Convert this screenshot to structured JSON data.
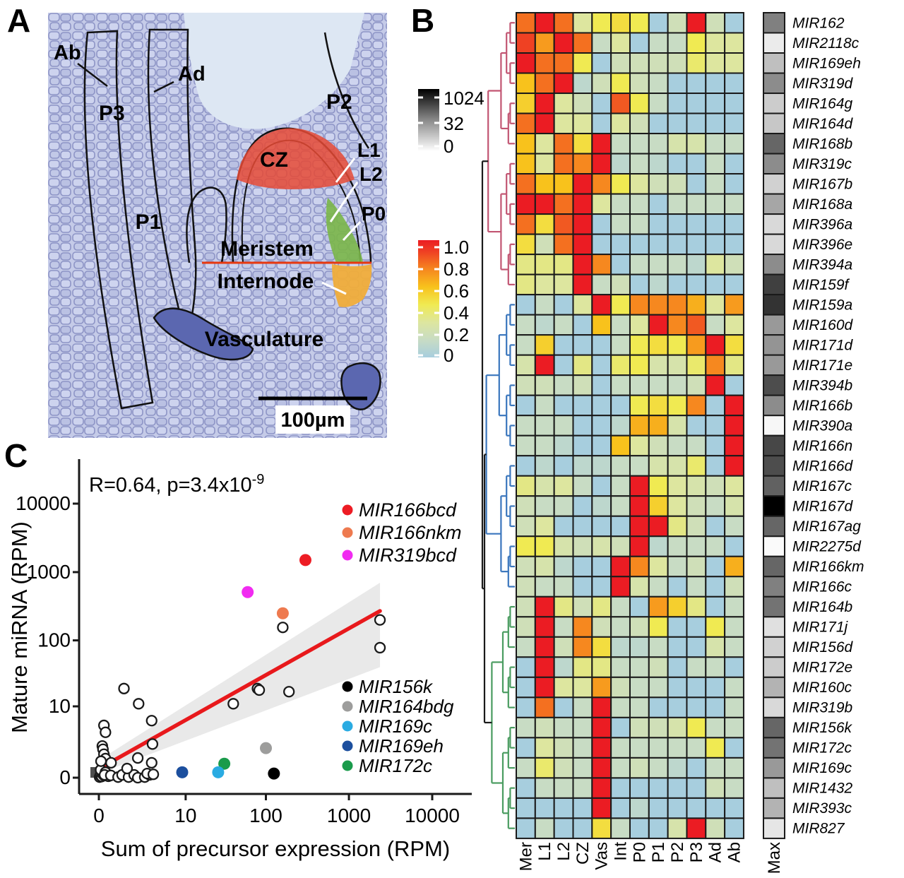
{
  "figure": {
    "panel_a_letter": "A",
    "panel_b_letter": "B",
    "panel_c_letter": "C"
  },
  "panel_a": {
    "labels": {
      "ab": "Ab",
      "ad": "Ad",
      "p3": "P3",
      "p2": "P2",
      "cz": "CZ",
      "l1": "L1",
      "l2": "L2",
      "p0": "P0",
      "p1": "P1",
      "meristem": "Meristem",
      "internode": "Internode",
      "vasculature": "Vasculature",
      "scale_bar": "100µm"
    },
    "region_colors": {
      "cz": "#e64a35",
      "p0": "#7ab648",
      "internode": "#f0ad3a",
      "vasculature": "#5b67b0",
      "meristem_boundary_line": "#e8380f",
      "tissue_base": "#c5cbe8",
      "cell_wall": "#8d94c6",
      "gap": "#dde7f3"
    }
  },
  "panel_b": {
    "gray_legend": {
      "ticks": [
        "1024",
        "32",
        "0"
      ]
    },
    "color_legend": {
      "ticks": [
        "1.0",
        "0.8",
        "0.6",
        "0.4",
        "0.2",
        "0"
      ]
    },
    "max_column_label": "Max"
  },
  "panel_c": {
    "annotation_base": "R=0.64, p=3.4x10",
    "annotation_exponent": "-9",
    "xlabel": "Sum of precursor expression (RPM)",
    "ylabel": "Mature miRNA (RPM)",
    "x_tick_labels": [
      "0",
      "10",
      "100",
      "1000",
      "10000"
    ],
    "y_tick_labels": [
      "0",
      "10",
      "100",
      "1000",
      "10000"
    ]
  },
  "chart_data": [
    {
      "type": "heatmap",
      "panel": "B",
      "columns": [
        "Mer",
        "L1",
        "L2",
        "CZ",
        "Vas",
        "Int",
        "P0",
        "P1",
        "P2",
        "P3",
        "Ad",
        "Ab"
      ],
      "rows": [
        "MIR162",
        "MIR2118c",
        "MIR169eh",
        "MIR319d",
        "MIR164g",
        "MIR164d",
        "MIR168b",
        "MIR319c",
        "MIR167b",
        "MIR168a",
        "MIR396a",
        "MIR396e",
        "MIR394a",
        "MIR159f",
        "MIR159a",
        "MIR160d",
        "MIR171d",
        "MIR171e",
        "MIR394b",
        "MIR166b",
        "MIR390a",
        "MIR166n",
        "MIR166d",
        "MIR167c",
        "MIR167d",
        "MIR167ag",
        "MIR2275d",
        "MIR166km",
        "MIR166c",
        "MIR164b",
        "MIR171j",
        "MIR156d",
        "MIR172e",
        "MIR160c",
        "MIR319b",
        "MIR156k",
        "MIR172c",
        "MIR169c",
        "MIR1432",
        "MIR393c",
        "MIR827"
      ],
      "values": [
        [
          0.8,
          1,
          0.8,
          0.3,
          0.45,
          0.5,
          0.45,
          0,
          0.2,
          1,
          0.2,
          0
        ],
        [
          0.9,
          0.7,
          1,
          0.8,
          0.15,
          0.3,
          0,
          0.15,
          0.15,
          0.45,
          0.3,
          0.3
        ],
        [
          1,
          0.8,
          0.8,
          0.45,
          0,
          0.2,
          0.2,
          0.2,
          0.2,
          0.4,
          0.3,
          0.3
        ],
        [
          0.6,
          0.8,
          1,
          0.1,
          0.2,
          0.45,
          0.2,
          0.15,
          0,
          0,
          0,
          0
        ],
        [
          0.55,
          1,
          0.3,
          0.2,
          0,
          0.85,
          0.45,
          0.15,
          0,
          0,
          0,
          0
        ],
        [
          0.8,
          1,
          0.3,
          0.3,
          0,
          0.3,
          0.2,
          0,
          0,
          0,
          0,
          0
        ],
        [
          0.6,
          0.3,
          0.8,
          0.5,
          1,
          0.15,
          0.15,
          0.15,
          0.25,
          0.25,
          0.15,
          0.15
        ],
        [
          0.6,
          0.3,
          0.8,
          0.75,
          1,
          0.1,
          0.15,
          0.1,
          0,
          0,
          0.15,
          0
        ],
        [
          0.8,
          0.6,
          0.6,
          1,
          0.75,
          0.45,
          0.3,
          0.2,
          0.2,
          0,
          0.15,
          0
        ],
        [
          1,
          1,
          0.8,
          1,
          0.3,
          0.15,
          0.15,
          0,
          0.15,
          0.15,
          0.15,
          0.15
        ],
        [
          0.8,
          0.5,
          0.85,
          1,
          0,
          0.15,
          0.15,
          0,
          0,
          0,
          0,
          0
        ],
        [
          0.5,
          0.2,
          0.8,
          1,
          0,
          0,
          0,
          0,
          0,
          0,
          0,
          0
        ],
        [
          0.35,
          0.35,
          0.35,
          1,
          0.75,
          0,
          0.15,
          0.15,
          0.15,
          0.1,
          0.3,
          0.2
        ],
        [
          0.35,
          0.3,
          0.3,
          1,
          0.15,
          0.2,
          0,
          0.1,
          0,
          0,
          0,
          0
        ],
        [
          0,
          0.15,
          0,
          0.3,
          1,
          0.45,
          0.75,
          0.75,
          0.75,
          0.65,
          0.3,
          0.7
        ],
        [
          0.15,
          0.1,
          0.15,
          0,
          0.6,
          0.15,
          0.3,
          1,
          0.75,
          0.85,
          0.15,
          0.3
        ],
        [
          0.15,
          0.55,
          0,
          0,
          0,
          0.15,
          0.45,
          0.5,
          0.45,
          0.7,
          1,
          0.5
        ],
        [
          0.25,
          1,
          0,
          0.35,
          0,
          0.4,
          0.45,
          0.25,
          0.25,
          0.4,
          0.75,
          0.35
        ],
        [
          0.2,
          0.2,
          0.15,
          0.2,
          0,
          0.15,
          0.15,
          0.15,
          0.15,
          0.2,
          1,
          0
        ],
        [
          0,
          0.15,
          0,
          0,
          0,
          0,
          0.45,
          0.5,
          0.45,
          0.75,
          0,
          1
        ],
        [
          0.15,
          0.15,
          0.15,
          0,
          0,
          0.1,
          0.65,
          0.65,
          0.25,
          0,
          0,
          1
        ],
        [
          0.15,
          0.15,
          0.1,
          0,
          0,
          0.6,
          0.3,
          0.2,
          0.15,
          0.15,
          0,
          1
        ],
        [
          0,
          0.1,
          0,
          0.1,
          0.1,
          0.15,
          0.15,
          0.25,
          0.25,
          0.4,
          0,
          1
        ],
        [
          0.35,
          0.25,
          0.3,
          0.15,
          0,
          0.15,
          1,
          0.45,
          0.3,
          0.25,
          0.2,
          0.3
        ],
        [
          0.2,
          0.15,
          0.15,
          0,
          0.1,
          0.15,
          1,
          0.55,
          0.3,
          0.2,
          0.15,
          0.25
        ],
        [
          0.2,
          0.3,
          0,
          0,
          0,
          0,
          1,
          1,
          0.35,
          0.2,
          0,
          0.15
        ],
        [
          0.45,
          0.45,
          0.25,
          0.2,
          0.25,
          0.2,
          1,
          0.1,
          0.15,
          0.15,
          0.15,
          0
        ],
        [
          0.2,
          0.25,
          0.1,
          0,
          0,
          1,
          0.75,
          0.3,
          0.15,
          0.2,
          0,
          0.65
        ],
        [
          0.2,
          0.15,
          0.15,
          0,
          0,
          1,
          0.25,
          0.15,
          0,
          0.15,
          0,
          0.2
        ],
        [
          0.2,
          1,
          0.35,
          0.2,
          0.35,
          0.15,
          0,
          0.7,
          0.55,
          0.35,
          0,
          0.15
        ],
        [
          0.2,
          1,
          0.15,
          0.75,
          0.2,
          0.15,
          0.2,
          0.45,
          0,
          0,
          0.45,
          0.15
        ],
        [
          0.15,
          1,
          0.2,
          0.75,
          0.5,
          0.1,
          0.1,
          0.15,
          0,
          0,
          0.25,
          0.15
        ],
        [
          0,
          1,
          0.1,
          0.35,
          0.35,
          0.15,
          0.15,
          0.2,
          0,
          0.15,
          0.15,
          0
        ],
        [
          0,
          1,
          0.3,
          0.3,
          0.7,
          0.2,
          0.15,
          0.15,
          0,
          0,
          0,
          0.15
        ],
        [
          0,
          0.8,
          0,
          0.15,
          1,
          0.15,
          0.15,
          0,
          0,
          0,
          0,
          0.15
        ],
        [
          0.15,
          0.2,
          0.15,
          0.15,
          1,
          0,
          0.2,
          0.2,
          0.25,
          0.45,
          0.15,
          0.15
        ],
        [
          0,
          0.3,
          0.2,
          0.15,
          1,
          0.15,
          0.15,
          0.15,
          0.15,
          0.15,
          0.45,
          0
        ],
        [
          0.15,
          0.4,
          0.2,
          0.15,
          1,
          0.15,
          0.2,
          0.15,
          0.1,
          0,
          0.15,
          0.15
        ],
        [
          0,
          0.15,
          0.15,
          0.15,
          1,
          0,
          0,
          0,
          0,
          0,
          0.2,
          0.15
        ],
        [
          0,
          0,
          0,
          0,
          1,
          0,
          0.1,
          0,
          0,
          0,
          0,
          0
        ],
        [
          0,
          0.15,
          0,
          0,
          0.5,
          0.15,
          0,
          0,
          0.25,
          1,
          0.2,
          0
        ]
      ],
      "max_column": {
        "label": "Max",
        "scale_max": 1024,
        "scale_mid": 32,
        "scale_min": 0,
        "values_fraction_black": [
          0.5,
          0.08,
          0.25,
          0.45,
          0.2,
          0.22,
          0.6,
          0.45,
          0.18,
          0.35,
          0.15,
          0.15,
          0.45,
          0.75,
          0.8,
          0.4,
          0.42,
          0.4,
          0.7,
          0.45,
          0.03,
          0.72,
          0.7,
          0.62,
          1,
          0.6,
          0.02,
          0.6,
          0.5,
          0.55,
          0.12,
          0.18,
          0.2,
          0.3,
          0.15,
          0.6,
          0.55,
          0.4,
          0.25,
          0.3,
          0.1
        ]
      },
      "color_scale": {
        "ticks": [
          1.0,
          0.8,
          0.6,
          0.4,
          0.2,
          0
        ],
        "stops": [
          [
            0,
            "#a7cede"
          ],
          [
            0.15,
            "#c8dcc4"
          ],
          [
            0.3,
            "#dde69f"
          ],
          [
            0.45,
            "#f0ea52"
          ],
          [
            0.6,
            "#f8c21c"
          ],
          [
            0.75,
            "#f6881f"
          ],
          [
            0.9,
            "#ef4123"
          ],
          [
            1,
            "#eb1c23"
          ]
        ]
      },
      "row_clusters": [
        {
          "range": [
            0,
            13
          ],
          "color": "#c25572"
        },
        {
          "range": [
            14,
            28
          ],
          "color": "#3a76bd"
        },
        {
          "range": [
            29,
            40
          ],
          "color": "#4a9c60"
        }
      ],
      "root_color": "#1a1a1a"
    },
    {
      "type": "scatter",
      "panel": "C",
      "annotation": "R=0.64, p=3.4x10^-9",
      "xlabel": "Sum of precursor expression (RPM)",
      "ylabel": "Mature miRNA (RPM)",
      "x_ticks": [
        0,
        10,
        100,
        1000,
        10000
      ],
      "y_ticks": [
        0,
        10,
        100,
        1000,
        10000
      ],
      "axis_scale": "log10(value+1)",
      "open_points": [
        [
          0.02,
          0.02
        ],
        [
          0.04,
          0.08
        ],
        [
          0.08,
          0.04
        ],
        [
          0.1,
          0.15
        ],
        [
          0.15,
          0.08
        ],
        [
          0.05,
          0.3
        ],
        [
          0.2,
          0.2
        ],
        [
          0.3,
          0.05
        ],
        [
          0.15,
          4.8
        ],
        [
          0.2,
          3.6
        ],
        [
          0.1,
          1.9
        ],
        [
          0.12,
          1.6
        ],
        [
          0.15,
          1.2
        ],
        [
          0.2,
          0.9
        ],
        [
          0.4,
          0.65
        ],
        [
          0.06,
          0.74
        ],
        [
          0.17,
          0.1
        ],
        [
          0.39,
          0.08
        ],
        [
          0.7,
          0.02
        ],
        [
          0.9,
          0.1
        ],
        [
          1.27,
          0.02
        ],
        [
          1.65,
          0.1
        ],
        [
          1.93,
          0
        ],
        [
          2.55,
          0.02
        ],
        [
          3.07,
          0.1
        ],
        [
          1.18,
          0.36
        ],
        [
          1,
          19
        ],
        [
          2,
          11
        ],
        [
          3.3,
          5.8
        ],
        [
          3.4,
          2.1
        ],
        [
          1.93,
          0.94
        ],
        [
          3.3,
          0.65
        ],
        [
          2.8,
          0.15
        ],
        [
          3.5,
          0.12
        ],
        [
          40,
          11
        ],
        [
          79,
          19
        ],
        [
          83,
          18
        ],
        [
          190,
          17
        ],
        [
          160,
          155
        ],
        [
          2360,
          200
        ],
        [
          2360,
          78
        ]
      ],
      "highlight_points": [
        {
          "label": "MIR166bcd",
          "color": "#ed1c24",
          "x": 300,
          "y": 1500
        },
        {
          "label": "MIR166nkm",
          "color": "#ee7a4f",
          "x": 160,
          "y": 250
        },
        {
          "label": "MIR319bcd",
          "color": "#f12bf1",
          "x": 60,
          "y": 510
        },
        {
          "label": "MIR164bdg",
          "color": "#9d9d9c",
          "x": 100,
          "y": 1.7
        },
        {
          "label": "MIR156k",
          "color": "#000000",
          "x": 125,
          "y": 0.15
        },
        {
          "label": "MIR172c",
          "color": "#1a9b4b",
          "x": 31,
          "y": 0.6
        },
        {
          "label": "MIR169c",
          "color": "#2aabe2",
          "x": 26,
          "y": 0.2
        },
        {
          "label": "MIR169eh",
          "color": "#1c4f9e",
          "x": 9,
          "y": 0.2
        }
      ],
      "legend_top": [
        "MIR166bcd",
        "MIR166nkm",
        "MIR319bcd"
      ],
      "legend_bottom": [
        "MIR156k",
        "MIR164bdg",
        "MIR169c",
        "MIR169eh",
        "MIR172c"
      ],
      "regression": {
        "color": "#e8191c",
        "from": [
          0,
          0.35
        ],
        "to": [
          2360,
          270
        ],
        "band_from": [
          0.15,
          0.8
        ],
        "band_to": [
          40,
          700
        ]
      }
    }
  ]
}
